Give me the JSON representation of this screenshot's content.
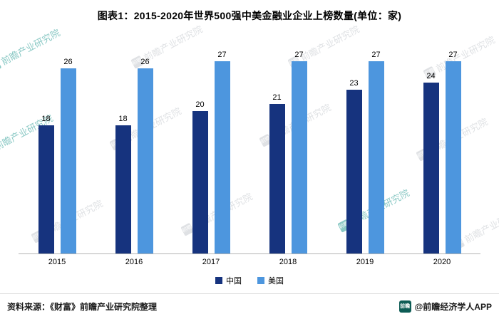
{
  "title": "图表1：2015-2020年世界500强中美金融业企业上榜数量(单位：家)",
  "chart_data": {
    "type": "bar",
    "categories": [
      "2015",
      "2016",
      "2017",
      "2018",
      "2019",
      "2020"
    ],
    "series": [
      {
        "name": "中国",
        "color": "#16337e",
        "values": [
          18,
          18,
          20,
          21,
          23,
          24
        ]
      },
      {
        "name": "美国",
        "color": "#4d96de",
        "values": [
          26,
          26,
          27,
          27,
          27,
          27
        ]
      }
    ],
    "title": "图表1：2015-2020年世界500强中美金融业企业上榜数量(单位：家)",
    "xlabel": "",
    "ylabel": "",
    "ylim": [
      0,
      27
    ],
    "grid": false,
    "legend_position": "bottom",
    "value_labels": true
  },
  "footer": {
    "source": "资料来源：《财富》前瞻产业研究院整理",
    "brand": "@前瞻经济学人APP",
    "brand_logo_text": "前瞻"
  },
  "watermark": {
    "text": "前瞻产业研究院",
    "logo_text": "前瞻"
  },
  "colors": {
    "china_bar": "#16337e",
    "usa_bar": "#4d96de",
    "axis_line": "#b3b3b3",
    "watermark_gray": "#b9bec4",
    "watermark_teal": "#2e9e97"
  }
}
